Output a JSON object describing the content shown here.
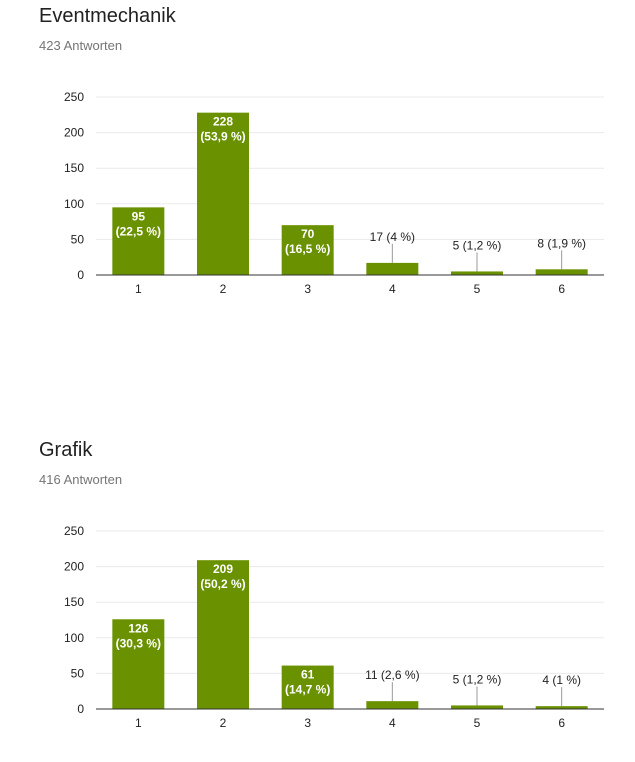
{
  "sections": [
    {
      "title": "Eventmechanik",
      "responses": "423 Antworten"
    },
    {
      "title": "Grafik",
      "responses": "416 Antworten"
    }
  ],
  "colors": {
    "bar": "#6a9100",
    "grid": "#eaeaea",
    "axis": "#333333"
  },
  "chart_data": [
    {
      "type": "bar",
      "categories": [
        "1",
        "2",
        "3",
        "4",
        "5",
        "6"
      ],
      "values": [
        95,
        228,
        70,
        17,
        5,
        8
      ],
      "data_labels": [
        [
          "95",
          "(22,5 %)"
        ],
        [
          "228",
          "(53,9 %)"
        ],
        [
          "70",
          "(16,5 %)"
        ],
        [
          "17 (4 %)"
        ],
        [
          "5 (1,2 %)"
        ],
        [
          "8 (1,9 %)"
        ]
      ],
      "ylim": [
        0,
        250
      ],
      "yticks": [
        0,
        50,
        100,
        150,
        200,
        250
      ],
      "grid": true
    },
    {
      "type": "bar",
      "categories": [
        "1",
        "2",
        "3",
        "4",
        "5",
        "6"
      ],
      "values": [
        126,
        209,
        61,
        11,
        5,
        4
      ],
      "data_labels": [
        [
          "126",
          "(30,3 %)"
        ],
        [
          "209",
          "(50,2 %)"
        ],
        [
          "61",
          "(14,7 %)"
        ],
        [
          "11 (2,6 %)"
        ],
        [
          "5 (1,2 %)"
        ],
        [
          "4 (1 %)"
        ]
      ],
      "ylim": [
        0,
        250
      ],
      "yticks": [
        0,
        50,
        100,
        150,
        200,
        250
      ],
      "grid": true
    }
  ]
}
